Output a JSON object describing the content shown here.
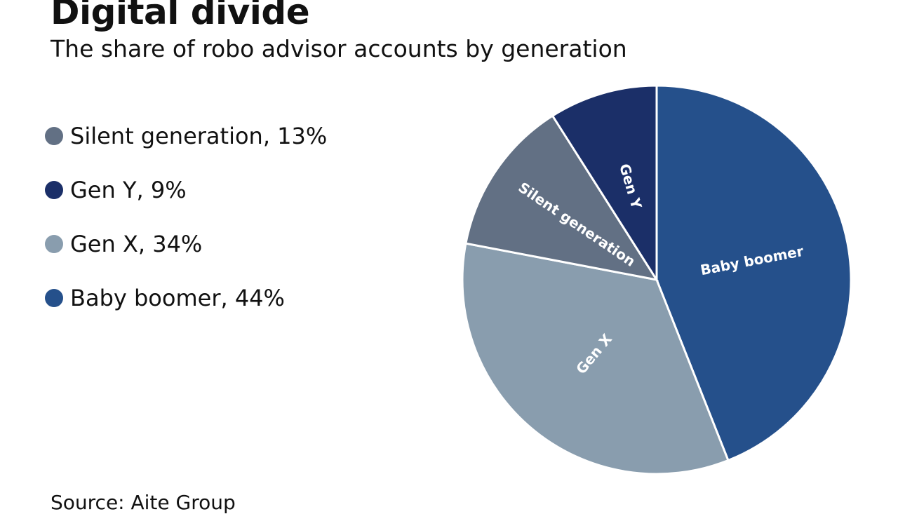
{
  "chart_data": {
    "type": "pie",
    "title": "Digital divide",
    "subtitle": "The share of robo advisor accounts by generation",
    "source": "Source: Aite Group",
    "legend_position": "left",
    "slices": [
      {
        "label": "Baby boomer",
        "value": 44,
        "color": "#25508b",
        "legend": "Baby boomer, 44%"
      },
      {
        "label": "Gen X",
        "value": 34,
        "color": "#899dae",
        "legend": "Gen X, 34%"
      },
      {
        "label": "Silent generation",
        "value": 13,
        "color": "#627084",
        "legend": "Silent generation, 13%"
      },
      {
        "label": "Gen Y",
        "value": 9,
        "color": "#1b2f68",
        "legend": "Gen Y, 9%"
      }
    ],
    "legend_order": [
      2,
      3,
      1,
      0
    ]
  }
}
